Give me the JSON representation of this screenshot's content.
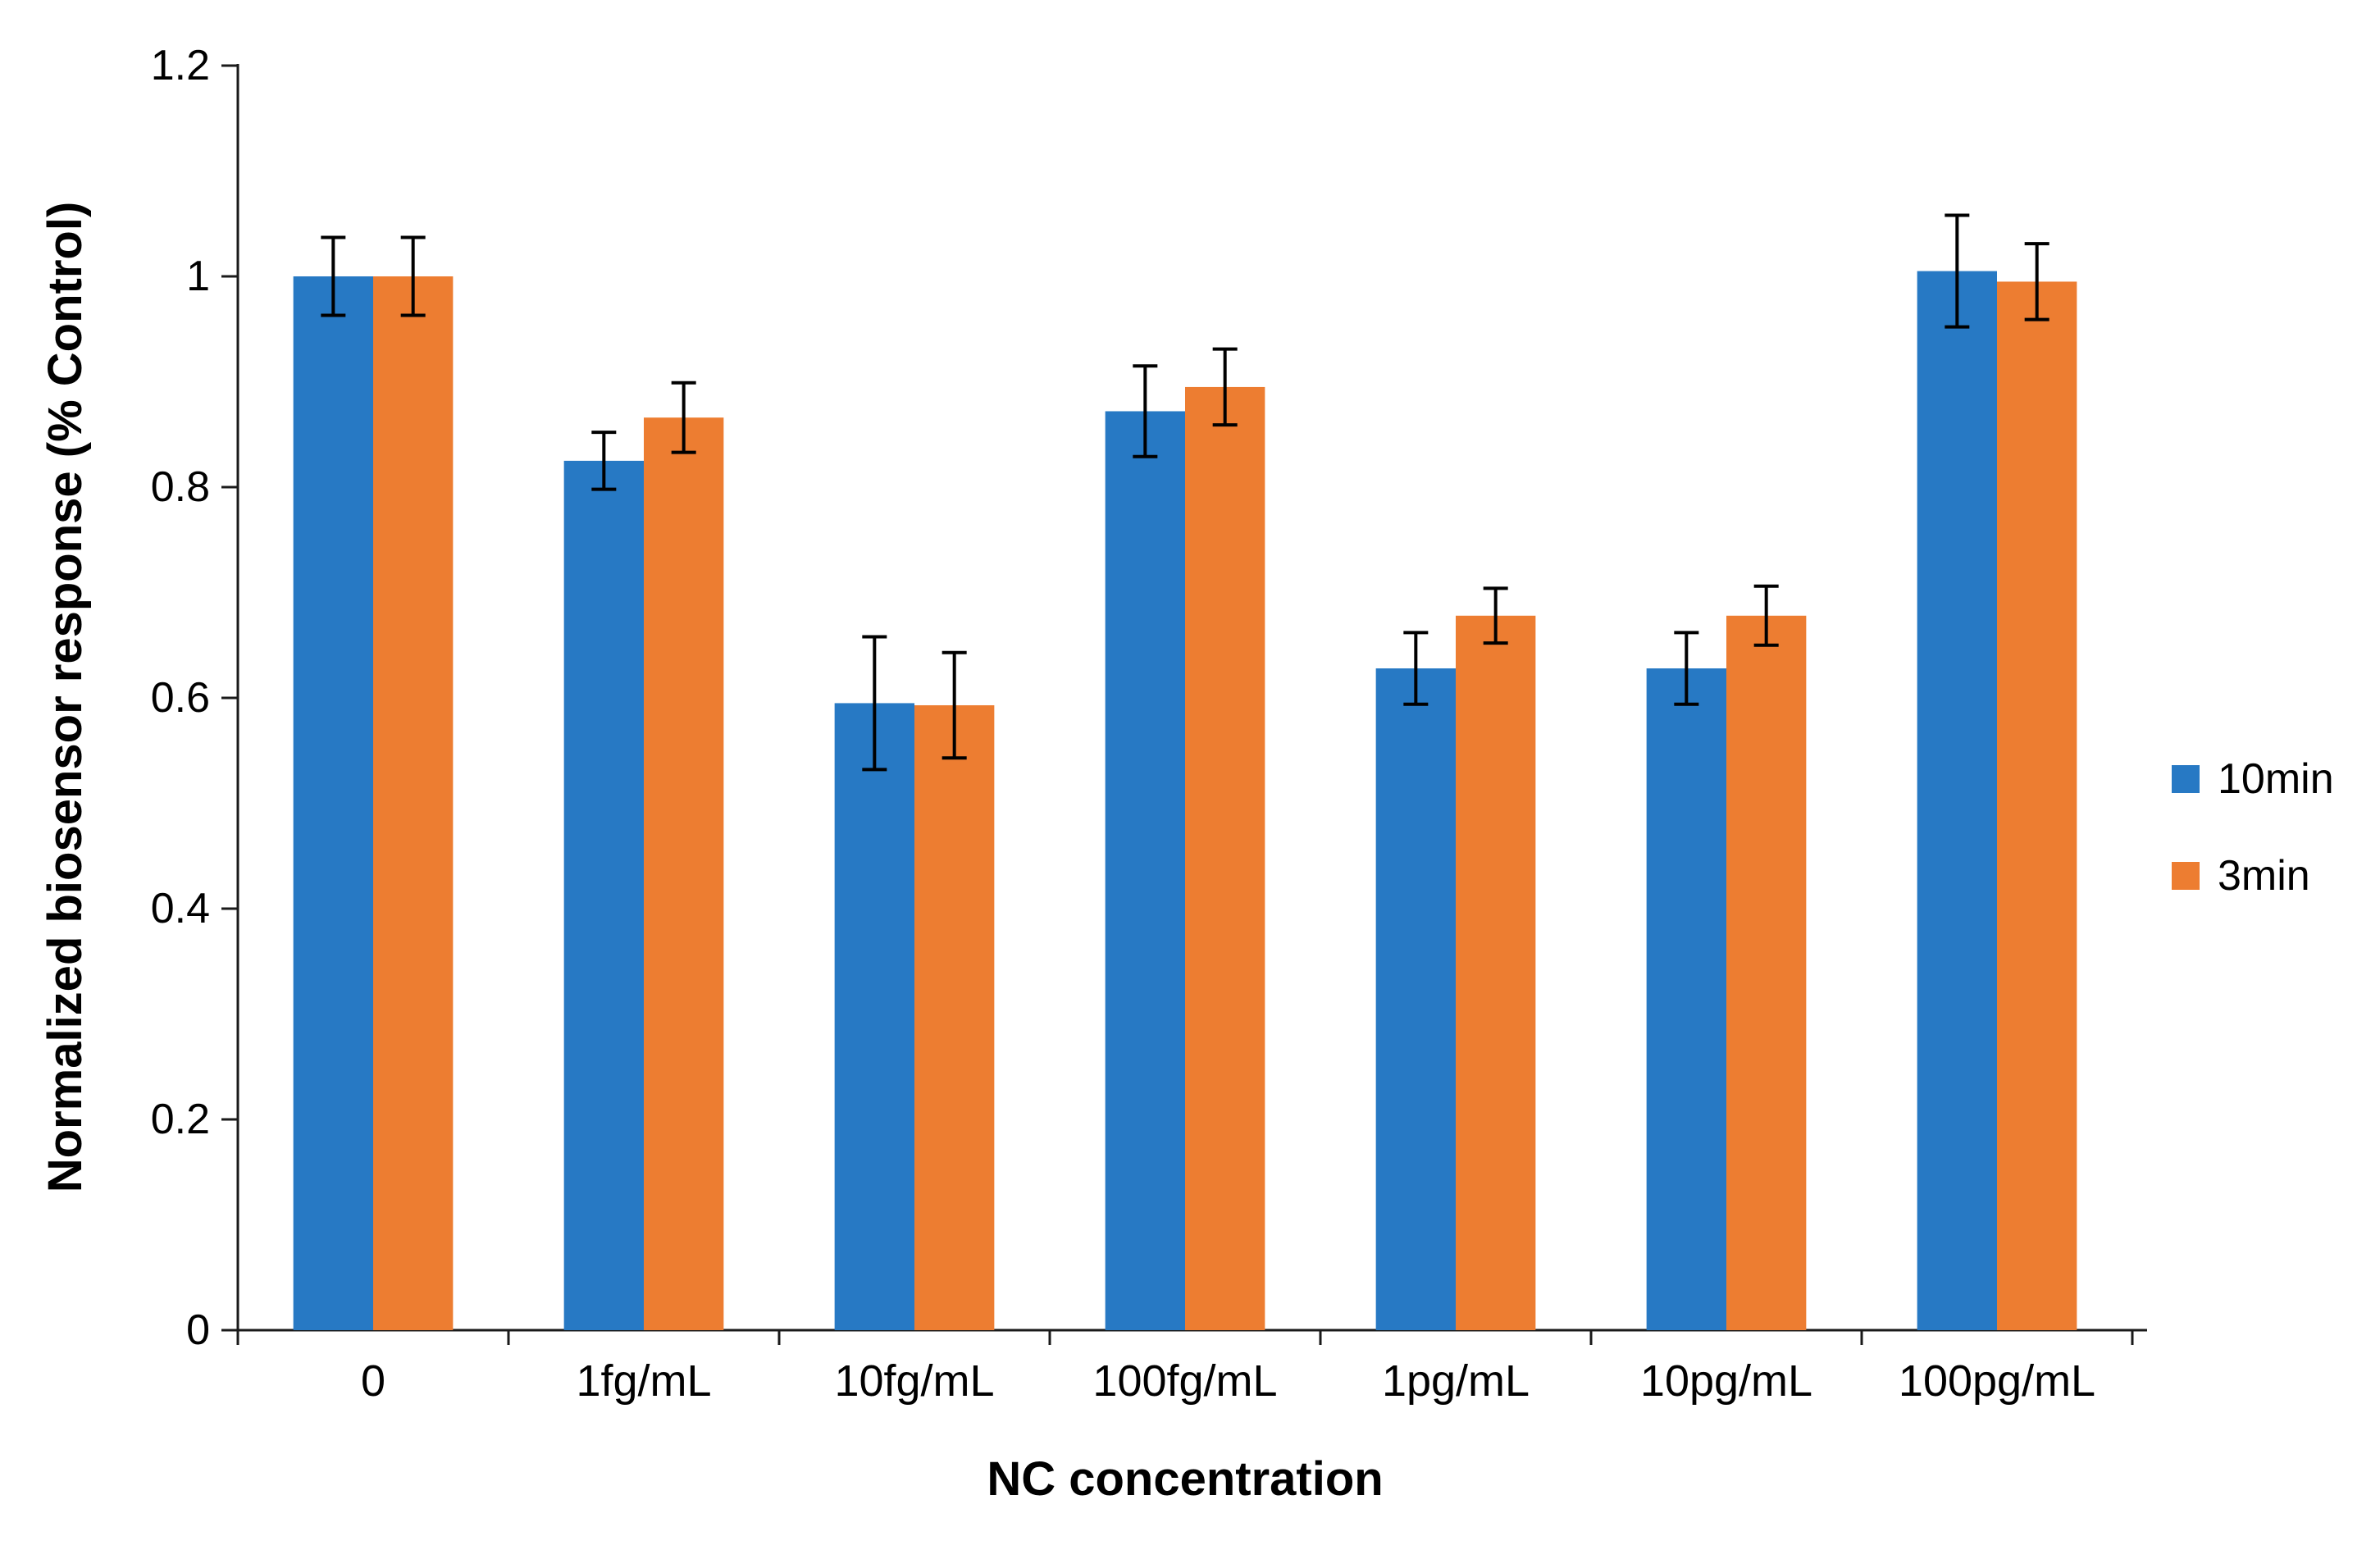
{
  "chart_data": {
    "type": "bar",
    "title": "",
    "xlabel": "NC concentration",
    "ylabel": "Normalized biosensor response (% Control)",
    "categories": [
      "0",
      "1fg/mL",
      "10fg/mL",
      "100fg/mL",
      "1pg/mL",
      "10pg/mL",
      "100pg/mL"
    ],
    "series": [
      {
        "name": "10min",
        "color": "#2779C4",
        "values": [
          1.0,
          0.825,
          0.595,
          0.872,
          0.628,
          0.628,
          1.005
        ],
        "errors": [
          0.037,
          0.027,
          0.063,
          0.043,
          0.034,
          0.034,
          0.053
        ]
      },
      {
        "name": "3min",
        "color": "#ED7D31",
        "values": [
          1.0,
          0.866,
          0.593,
          0.895,
          0.678,
          0.678,
          0.995
        ],
        "errors": [
          0.037,
          0.033,
          0.05,
          0.036,
          0.026,
          0.028,
          0.036
        ]
      }
    ],
    "ylim": [
      0,
      1.2
    ],
    "yticks": [
      0,
      0.2,
      0.4,
      0.6,
      0.8,
      1,
      1.2
    ],
    "ytick_labels": [
      "0",
      "0.2",
      "0.4",
      "0.6",
      "0.8",
      "1",
      "1.2"
    ],
    "legend_position": "right",
    "grid": false,
    "axis_color": "#1a1a1a",
    "error_bar_color": "#000000"
  }
}
